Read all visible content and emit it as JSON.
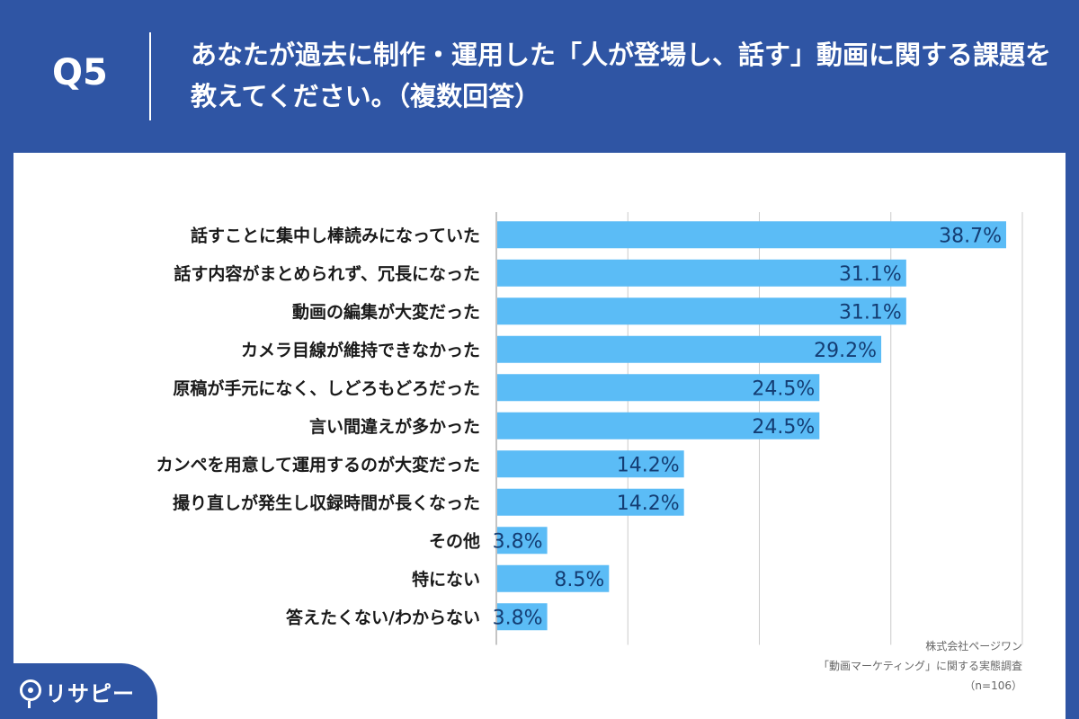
{
  "header": {
    "q_label": "Q5",
    "title": "あなたが過去に制作・運用した「人が登場し、話す」動画に関する課題を教えてください。（複数回答）"
  },
  "source": {
    "company": "株式会社ページワン",
    "survey": "「動画マーケティング」に関する実態調査",
    "n": "（n=106）"
  },
  "logo": {
    "text": "リサピー",
    "icon": "pin-icon"
  },
  "colors": {
    "header_bg": "#2f55a4",
    "bar": "#5bbcf6",
    "value_text": "#143d73",
    "grid": "#cccccc"
  },
  "chart_data": {
    "type": "bar",
    "orientation": "horizontal",
    "categories": [
      "話すことに集中し棒読みになっていた",
      "話す内容がまとめられず、冗長になった",
      "動画の編集が大変だった",
      "カメラ目線が維持できなかった",
      "原稿が手元になく、しどろもどろだった",
      "言い間違えが多かった",
      "カンペを用意して運用するのが大変だった",
      "撮り直しが発生し収録時間が長くなった",
      "その他",
      "特にない",
      "答えたくない/わからない"
    ],
    "values": [
      38.7,
      31.1,
      31.1,
      29.2,
      24.5,
      24.5,
      14.2,
      14.2,
      3.8,
      8.5,
      3.8
    ],
    "value_labels": [
      "38.7%",
      "31.1%",
      "31.1%",
      "29.2%",
      "24.5%",
      "24.5%",
      "14.2%",
      "14.2%",
      "3.8%",
      "8.5%",
      "3.8%"
    ],
    "xlim": [
      0,
      40
    ],
    "grid": true,
    "legend": "none"
  }
}
